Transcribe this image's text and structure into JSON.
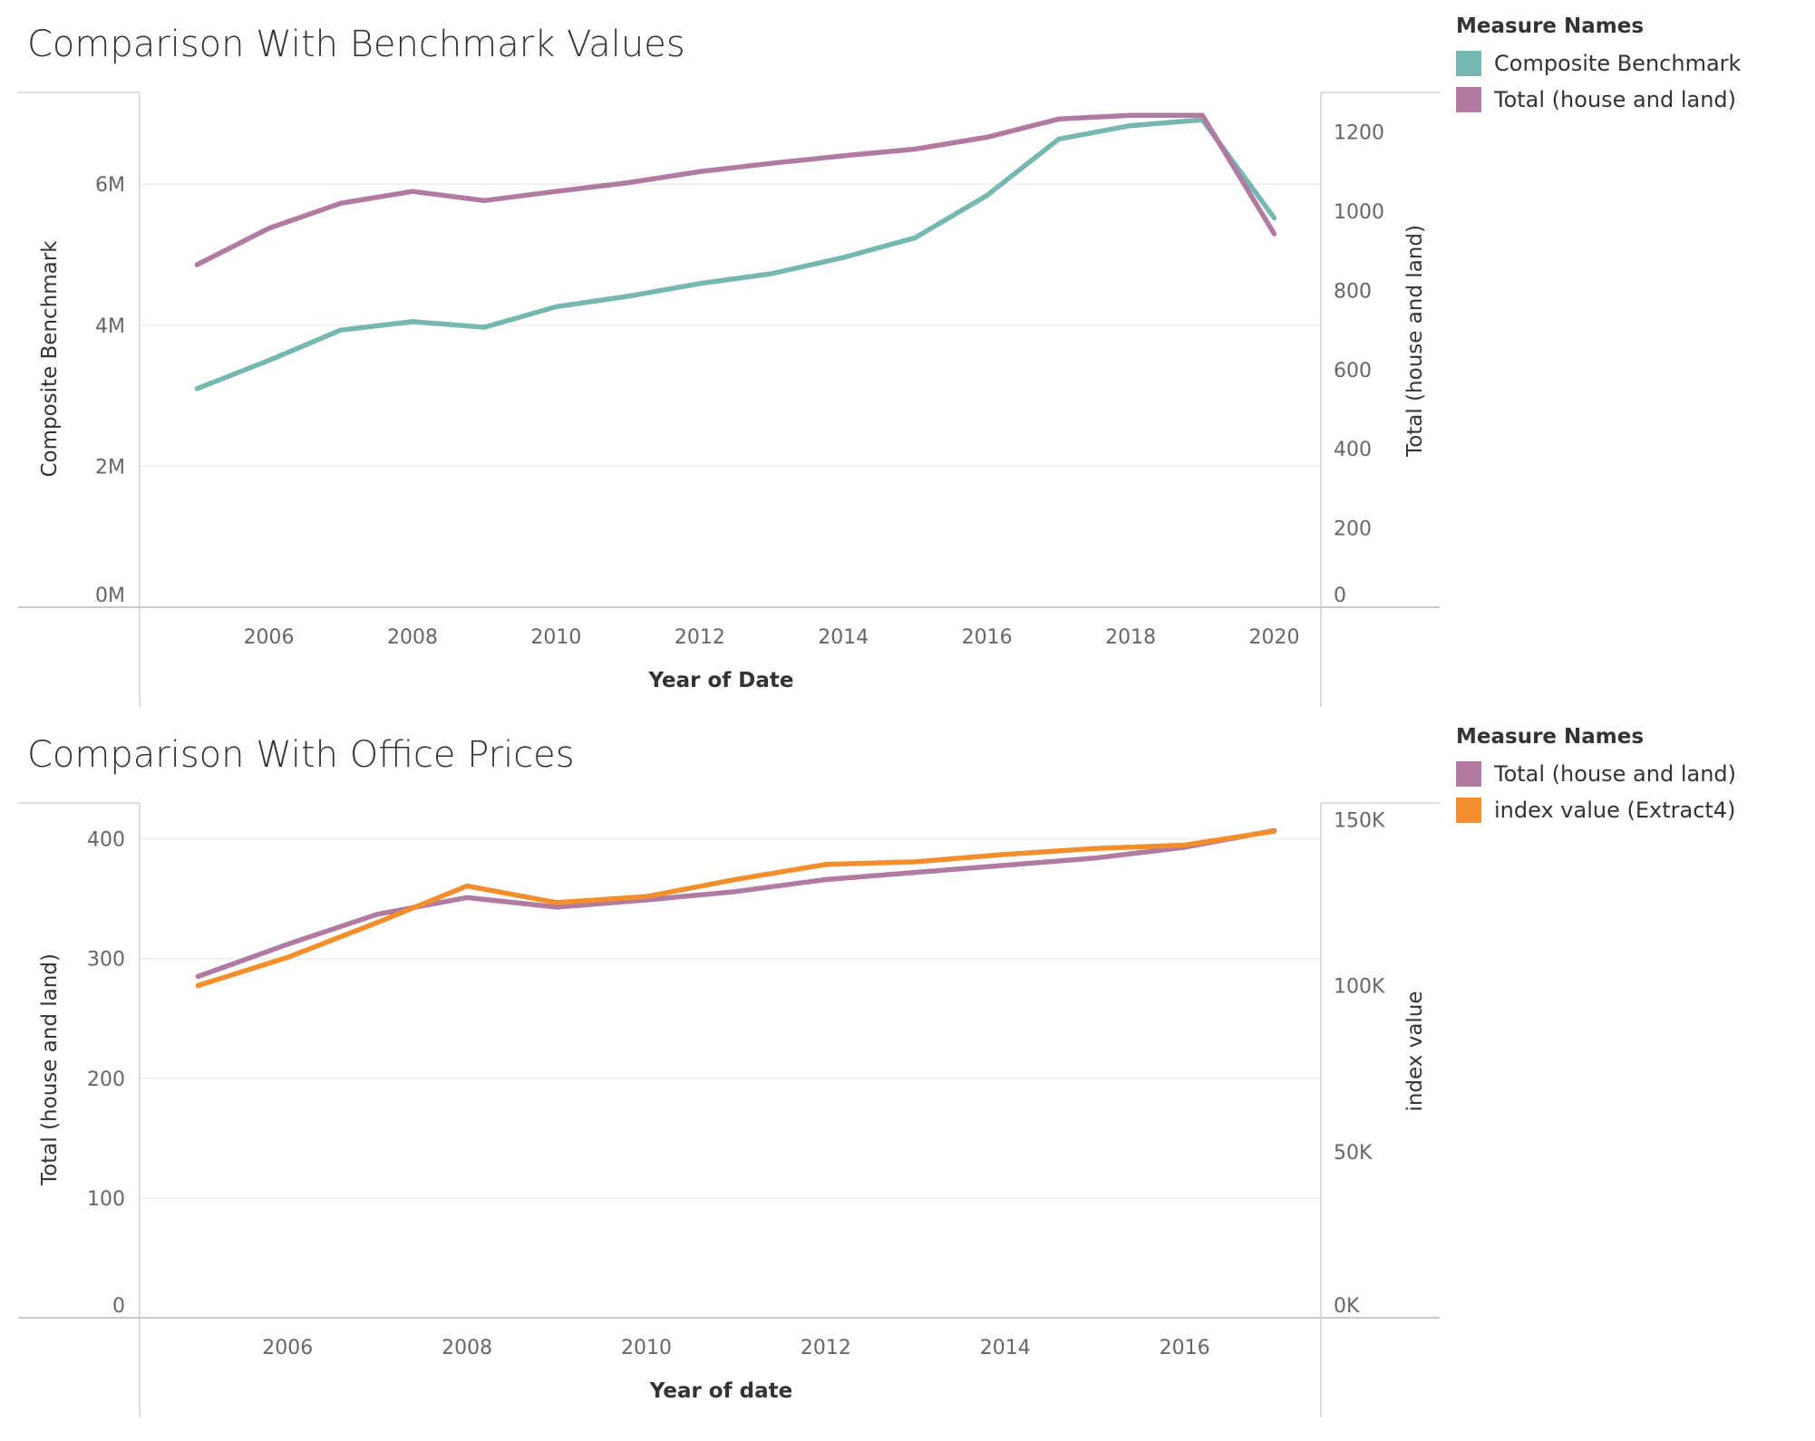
{
  "charts": [
    {
      "title": "Comparison With Benchmark Values",
      "legend": {
        "title": "Measure Names",
        "items": [
          {
            "label": "Composite Benchmark",
            "color": "#76b7b2"
          },
          {
            "label": "Total (house and land)",
            "color": "#b07aa1"
          }
        ]
      }
    },
    {
      "title": "Comparison With Office Prices",
      "legend": {
        "title": "Measure Names",
        "items": [
          {
            "label": "Total (house and land)",
            "color": "#b07aa1"
          },
          {
            "label": "index value (Extract4)",
            "color": "#f28e2b"
          }
        ]
      }
    }
  ],
  "chart_data": [
    {
      "type": "line",
      "title": "Comparison With Benchmark Values",
      "xlabel": "Year of Date",
      "ylabel_left": "Composite Benchmark",
      "ylabel_right": "Total (house and land)",
      "x": [
        2005,
        2006,
        2007,
        2008,
        2009,
        2010,
        2011,
        2012,
        2013,
        2014,
        2015,
        2016,
        2017,
        2018,
        2019,
        2020
      ],
      "x_ticks": [
        "2006",
        "2008",
        "2010",
        "2012",
        "2014",
        "2016",
        "2018",
        "2020"
      ],
      "x_tick_values": [
        2006,
        2008,
        2010,
        2012,
        2014,
        2016,
        2018,
        2020
      ],
      "xlim": [
        2004.2,
        2020.65
      ],
      "y_left": {
        "lim": [
          0,
          7300000
        ],
        "ticks": [
          0,
          2000000,
          4000000,
          6000000
        ],
        "tick_labels": [
          "0M",
          "2M",
          "4M",
          "6M"
        ]
      },
      "y_right": {
        "lim": [
          0,
          1300
        ],
        "ticks": [
          0,
          200,
          400,
          600,
          800,
          1000,
          1200
        ],
        "tick_labels": [
          "0",
          "200",
          "400",
          "600",
          "800",
          "1000",
          "1200"
        ]
      },
      "grid": true,
      "legend_position": "right",
      "series": [
        {
          "name": "Composite Benchmark",
          "axis": "left",
          "color": "#76b7b2",
          "values": [
            3100000,
            3500000,
            3930000,
            4050000,
            3970000,
            4260000,
            4410000,
            4590000,
            4730000,
            4960000,
            5240000,
            5840000,
            6640000,
            6830000,
            6910000,
            5520000
          ]
        },
        {
          "name": "Total (house and land)",
          "axis": "right",
          "color": "#b07aa1",
          "values": [
            865,
            957,
            1020,
            1050,
            1027,
            1050,
            1072,
            1100,
            1121,
            1140,
            1157,
            1187,
            1233,
            1242,
            1242,
            943
          ]
        }
      ]
    },
    {
      "type": "line",
      "title": "Comparison With Office Prices",
      "xlabel": "Year of date",
      "ylabel_left": "Total (house and land)",
      "ylabel_right": "index value",
      "x": [
        2005,
        2006,
        2007,
        2008,
        2009,
        2010,
        2011,
        2012,
        2013,
        2014,
        2015,
        2016,
        2017
      ],
      "x_ticks": [
        "2006",
        "2008",
        "2010",
        "2012",
        "2014",
        "2016"
      ],
      "x_tick_values": [
        2006,
        2008,
        2010,
        2012,
        2014,
        2016
      ],
      "xlim": [
        2004.35,
        2017.52
      ],
      "y_left": {
        "lim": [
          0,
          430
        ],
        "ticks": [
          0,
          100,
          200,
          300,
          400
        ],
        "tick_labels": [
          "0",
          "100",
          "200",
          "300",
          "400"
        ]
      },
      "y_right": {
        "lim": [
          0,
          155000
        ],
        "ticks": [
          0,
          50000,
          100000,
          150000
        ],
        "tick_labels": [
          "0K",
          "50K",
          "100K",
          "150K"
        ]
      },
      "grid": true,
      "legend_position": "right",
      "series": [
        {
          "name": "Total (house and land)",
          "axis": "left",
          "color": "#b07aa1",
          "values": [
            285,
            312,
            337,
            351,
            343,
            349,
            356,
            366,
            372,
            378,
            384,
            393,
            407
          ]
        },
        {
          "name": "index value (Extract4)",
          "axis": "right",
          "color": "#f28e2b",
          "values": [
            100000,
            108500,
            119000,
            130000,
            125000,
            126800,
            132000,
            136500,
            137300,
            139500,
            141300,
            142300,
            146500
          ]
        }
      ]
    }
  ]
}
